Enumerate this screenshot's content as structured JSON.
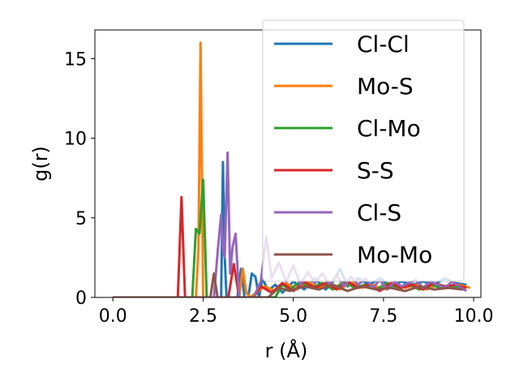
{
  "chart_data": {
    "type": "line",
    "title": "",
    "xlabel": "r (Å)",
    "ylabel": "g(r)",
    "xlim": [
      -0.5,
      10.2
    ],
    "ylim": [
      0,
      16.8
    ],
    "xticks": [
      "0.0",
      "2.5",
      "5.0",
      "7.5",
      "10.0"
    ],
    "xtick_values": [
      0,
      2.5,
      5,
      7.5,
      10
    ],
    "yticks": [
      "0",
      "5",
      "10",
      "15"
    ],
    "ytick_values": [
      0,
      5,
      10,
      15
    ],
    "grid": false,
    "legend": "upper right",
    "series": [
      {
        "name": "Cl-Cl",
        "color": "#1f77b4",
        "x": [
          0,
          2.9,
          3.0,
          3.05,
          3.1,
          3.15,
          3.25,
          3.45,
          3.55,
          3.65,
          3.75,
          3.85,
          3.95,
          4.05,
          4.15,
          4.3,
          4.5,
          4.7,
          5.0,
          5.3,
          5.6,
          5.9,
          6.1,
          6.3,
          6.5,
          6.8,
          7.1,
          7.4,
          7.7,
          8.0,
          8.3,
          8.6,
          8.9,
          9.2,
          9.5,
          9.8
        ],
        "y": [
          0,
          0,
          0,
          8.5,
          2.5,
          0,
          0,
          0,
          1.8,
          0,
          0,
          1.5,
          1.3,
          0,
          1.2,
          0.4,
          0.8,
          0.3,
          1.0,
          0.5,
          1.2,
          0.5,
          1.0,
          1.8,
          0.7,
          1.2,
          0.8,
          1.2,
          0.7,
          1.0,
          0.8,
          1.0,
          0.8,
          1.2,
          0.9,
          0.8
        ]
      },
      {
        "name": "Mo-S",
        "color": "#ff7f0e",
        "x": [
          0,
          2.3,
          2.37,
          2.43,
          2.5,
          2.6,
          3.5,
          3.6,
          3.7,
          3.8,
          4.2,
          4.5,
          4.8,
          5.1,
          5.4,
          5.7,
          6.0,
          6.3,
          6.6,
          6.9,
          7.2,
          7.5,
          7.8,
          8.1,
          8.4,
          8.7,
          9.0,
          9.3,
          9.6,
          9.9
        ],
        "y": [
          0,
          0,
          3.0,
          16.0,
          0,
          0,
          0,
          1.8,
          0.3,
          0,
          0.7,
          0.4,
          0.9,
          0.5,
          1.0,
          0.6,
          0.9,
          0.5,
          1.0,
          0.6,
          0.8,
          0.5,
          0.9,
          0.6,
          0.8,
          0.5,
          0.8,
          0.6,
          0.8,
          0.6
        ]
      },
      {
        "name": "Cl-Mo",
        "color": "#2ca02c",
        "x": [
          0,
          2.1,
          2.2,
          2.3,
          2.4,
          2.5,
          2.6,
          2.7,
          4.5,
          4.7,
          4.9,
          5.2,
          5.5,
          5.8,
          6.1,
          6.4,
          6.7,
          7.0,
          7.3,
          7.6,
          7.9,
          8.2,
          8.5,
          8.8,
          9.1,
          9.4,
          9.7
        ],
        "y": [
          0,
          0,
          0,
          4.3,
          4.0,
          7.4,
          0,
          0,
          0,
          0.8,
          0.5,
          1.0,
          0.6,
          0.9,
          0.5,
          1.0,
          0.6,
          0.8,
          0.5,
          0.9,
          0.6,
          0.8,
          0.5,
          0.8,
          0.6,
          0.7,
          0.6
        ]
      },
      {
        "name": "S-S",
        "color": "#d62728",
        "x": [
          0,
          1.8,
          1.9,
          2.0,
          2.1,
          3.2,
          3.35,
          3.5,
          3.9,
          4.1,
          4.4,
          4.7,
          5.0,
          5.3,
          5.6,
          5.9,
          6.2,
          6.5,
          6.8,
          7.1,
          7.4,
          7.7,
          8.0,
          8.3,
          8.6,
          8.9,
          9.2,
          9.5,
          9.8
        ],
        "y": [
          0,
          0,
          6.3,
          0,
          0,
          0,
          2.1,
          0,
          0,
          0.7,
          0.3,
          0.9,
          0.4,
          1.0,
          0.6,
          0.9,
          0.5,
          1.0,
          0.6,
          0.8,
          0.4,
          0.9,
          0.6,
          0.8,
          0.5,
          0.9,
          0.7,
          0.8,
          0.6
        ]
      },
      {
        "name": "Cl-S",
        "color": "#9467bd",
        "x": [
          0,
          2.8,
          2.9,
          3.0,
          3.05,
          3.1,
          3.18,
          3.25,
          3.32,
          3.4,
          3.5,
          3.6,
          3.9,
          4.1,
          4.25,
          4.4,
          4.6,
          4.8,
          5.0,
          5.2,
          5.4,
          5.6,
          5.8,
          6.0,
          6.2,
          6.4,
          6.6,
          6.8,
          7.0,
          7.2,
          7.4,
          7.6,
          7.8,
          8.0,
          8.2,
          8.4,
          8.6,
          8.8,
          9.0,
          9.2,
          9.4,
          9.6,
          9.8
        ],
        "y": [
          0,
          0,
          2.8,
          5.2,
          3.0,
          2.5,
          9.1,
          1.5,
          3.2,
          4.0,
          0,
          0,
          0,
          1.0,
          3.8,
          1.2,
          2.2,
          1.0,
          2.0,
          0.8,
          1.6,
          0.9,
          1.5,
          0.8,
          1.4,
          0.7,
          1.3,
          0.8,
          1.2,
          0.6,
          1.1,
          0.5,
          1.0,
          0.7,
          0.9,
          1.1,
          0.6,
          1.0,
          0.8,
          0.6,
          1.0,
          0.7,
          0.4
        ]
      },
      {
        "name": "Mo-Mo",
        "color": "#8c564b",
        "x": [
          0,
          2.7,
          2.8,
          2.9,
          4.3,
          4.6,
          4.9,
          5.3,
          5.7,
          6.1,
          6.5,
          6.9,
          7.3,
          7.7,
          8.1,
          8.5,
          8.9,
          9.3,
          9.7
        ],
        "y": [
          0,
          0,
          1.5,
          0,
          0,
          0.6,
          0.4,
          0.7,
          0.5,
          0.8,
          0.4,
          0.7,
          0.5,
          0.6,
          0.4,
          0.7,
          0.5,
          0.6,
          0.5
        ]
      }
    ]
  }
}
